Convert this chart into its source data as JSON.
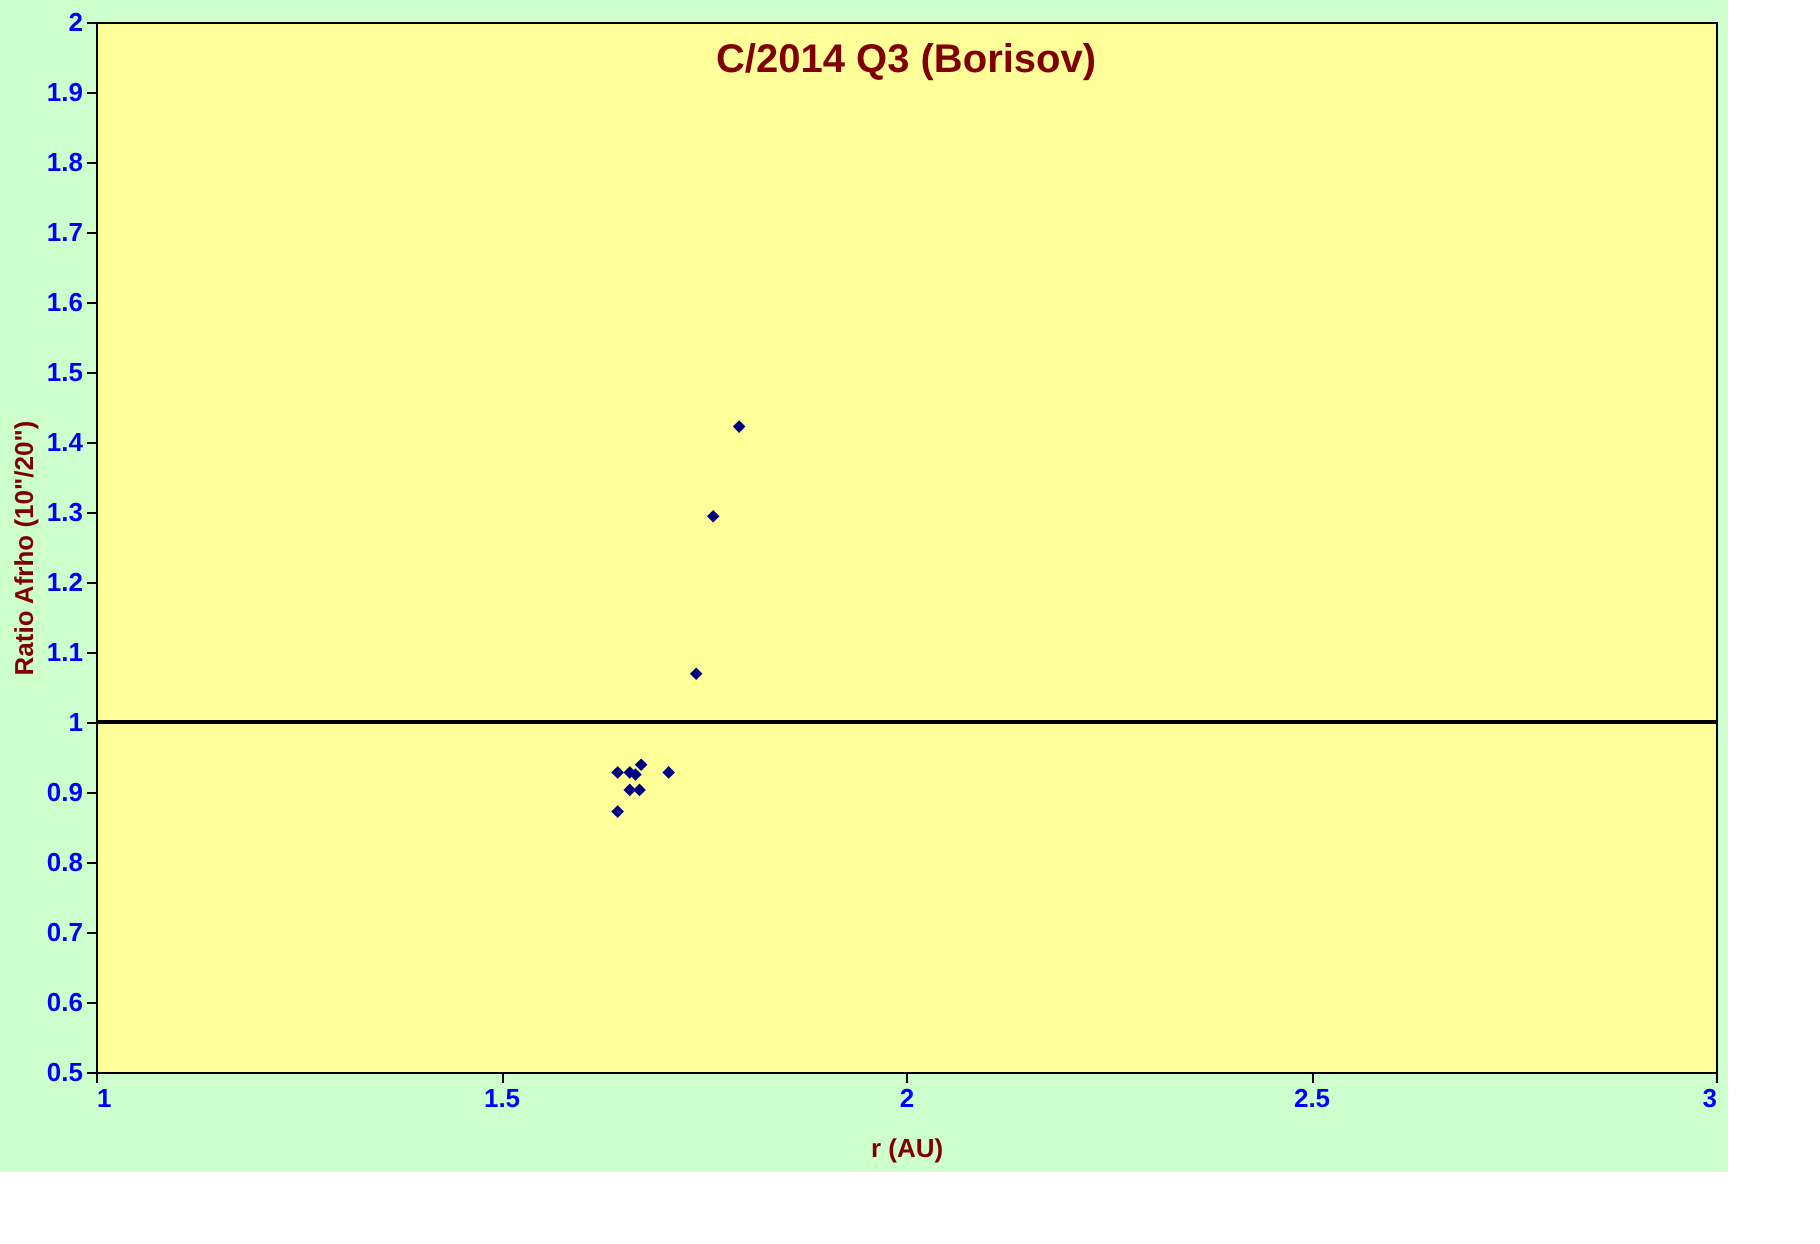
{
  "chart_data": {
    "type": "scatter",
    "title": "C/2014 Q3 (Borisov)",
    "xlabel": "r (AU)",
    "ylabel": "Ratio Afrho (10\"/20\")",
    "x": [
      1.794,
      1.762,
      1.741,
      1.707,
      1.644,
      1.644,
      1.659,
      1.666,
      1.673,
      1.659,
      1.671
    ],
    "series": [
      {
        "color": "#000080",
        "values": [
          1.422,
          1.294,
          1.069,
          0.928,
          0.872,
          0.928,
          0.928,
          0.925,
          0.939,
          0.903,
          0.903
        ]
      }
    ],
    "xlim": [
      1,
      3
    ],
    "xticks": [
      1,
      1.5,
      2,
      2.5,
      3
    ],
    "ylim": [
      0.5,
      2
    ],
    "yticks": [
      0.5,
      0.6,
      0.7,
      0.8,
      0.9,
      1,
      1.1,
      1.2,
      1.3,
      1.4,
      1.5,
      1.6,
      1.7,
      1.8,
      1.9,
      2
    ],
    "ref_lines": [
      {
        "axis": "y",
        "value": 1,
        "color": "#000000"
      }
    ],
    "marker": "diamond",
    "grid": false
  }
}
